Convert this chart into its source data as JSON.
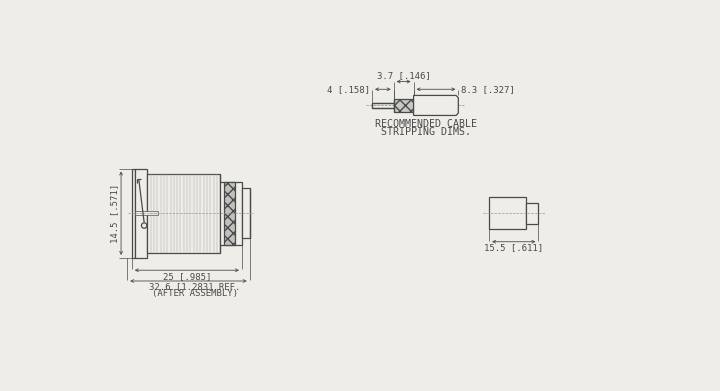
{
  "bg_color": "#eeede8",
  "line_color": "#4a4a4a",
  "dim_color": "#4a4a4a",
  "cable_label_line1": "RECOMMENDED CABLE",
  "cable_label_line2": "STRIPPING DIMS.",
  "dim_4_label": "4 [.158]",
  "dim_3_7_label": "3.7 [.146]",
  "dim_8_3_label": "8.3 [.327]",
  "dim_14_5_label": "14.5 [.571]",
  "dim_25_label": "25 [.985]",
  "dim_32_6_label": "32.6 [1.283] REF.",
  "dim_32_6_label2": "(AFTER ASSEMBLY)",
  "dim_15_5_label": "15.5 [.611]",
  "font_size_dim": 6.5,
  "font_size_label": 7.2
}
